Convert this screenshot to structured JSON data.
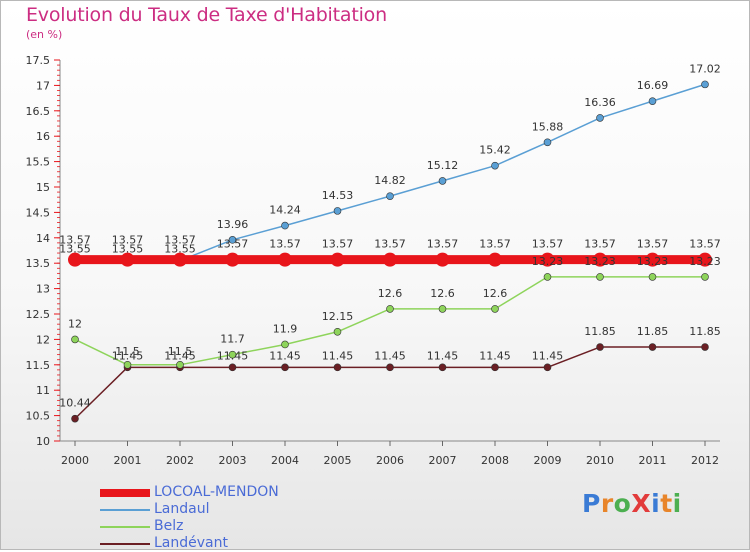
{
  "title": "Evolution du Taux de Taxe d'Habitation",
  "subtitle": "(en %)",
  "logo": {
    "text": "ProXiti",
    "colors": [
      "#3a7bd5",
      "#e8852a",
      "#4caf50",
      "#e23b3b",
      "#3a7bd5",
      "#e8852a",
      "#4caf50"
    ]
  },
  "chart_data": {
    "type": "line",
    "title": "Evolution du Taux de Taxe d'Habitation",
    "ylabel": "(en %)",
    "xlabel": "",
    "x": [
      "2000",
      "2001",
      "2002",
      "2003",
      "2004",
      "2005",
      "2006",
      "2007",
      "2008",
      "2009",
      "2010",
      "2011",
      "2012"
    ],
    "ylim": [
      10,
      17.5
    ],
    "yticks": [
      "10",
      "10.5",
      "11",
      "11.5",
      "12",
      "12.5",
      "13",
      "13.5",
      "14",
      "14.5",
      "15",
      "15.5",
      "16",
      "16.5",
      "17",
      "17.5"
    ],
    "grid": false,
    "legend_position": "bottom-left",
    "series": [
      {
        "name": "LOCOAL-MENDON",
        "color": "#e8151b",
        "values": [
          13.57,
          13.57,
          13.57,
          13.57,
          13.57,
          13.57,
          13.57,
          13.57,
          13.57,
          13.57,
          13.57,
          13.57,
          13.57
        ],
        "labels": [
          "13.57",
          "13.57",
          "13.57",
          "13.57",
          "13.57",
          "13.57",
          "13.57",
          "13.57",
          "13.57",
          "13.57",
          "13.57",
          "13.57",
          "13.57"
        ]
      },
      {
        "name": "Landaul",
        "color": "#5a9fd4",
        "values": [
          13.55,
          13.55,
          13.55,
          13.96,
          14.24,
          14.53,
          14.82,
          15.12,
          15.42,
          15.88,
          16.36,
          16.69,
          17.02
        ],
        "labels": [
          "13.55",
          "13.55",
          "13.55",
          "13.96",
          "14.24",
          "14.53",
          "14.82",
          "15.12",
          "15.42",
          "15.88",
          "16.36",
          "16.69",
          "17.02"
        ]
      },
      {
        "name": "Belz",
        "color": "#8ed45b",
        "values": [
          12,
          11.5,
          11.5,
          11.7,
          11.9,
          12.15,
          12.6,
          12.6,
          12.6,
          13.23,
          13.23,
          13.23,
          13.23
        ],
        "labels": [
          "12",
          "11.5",
          "11.5",
          "11.7",
          "11.9",
          "12.15",
          "12.6",
          "12.6",
          "12.6",
          "13.23",
          "13.23",
          "13.23",
          "13.23"
        ]
      },
      {
        "name": "Landévant",
        "color": "#6b1f24",
        "values": [
          10.44,
          11.45,
          11.45,
          11.45,
          11.45,
          11.45,
          11.45,
          11.45,
          11.45,
          11.45,
          11.85,
          11.85,
          11.85
        ],
        "labels": [
          "10.44",
          "11.45",
          "11.45",
          "11.45",
          "11.45",
          "11.45",
          "11.45",
          "11.45",
          "11.45",
          "11.45",
          "11.85",
          "11.85",
          "11.85"
        ]
      }
    ]
  }
}
